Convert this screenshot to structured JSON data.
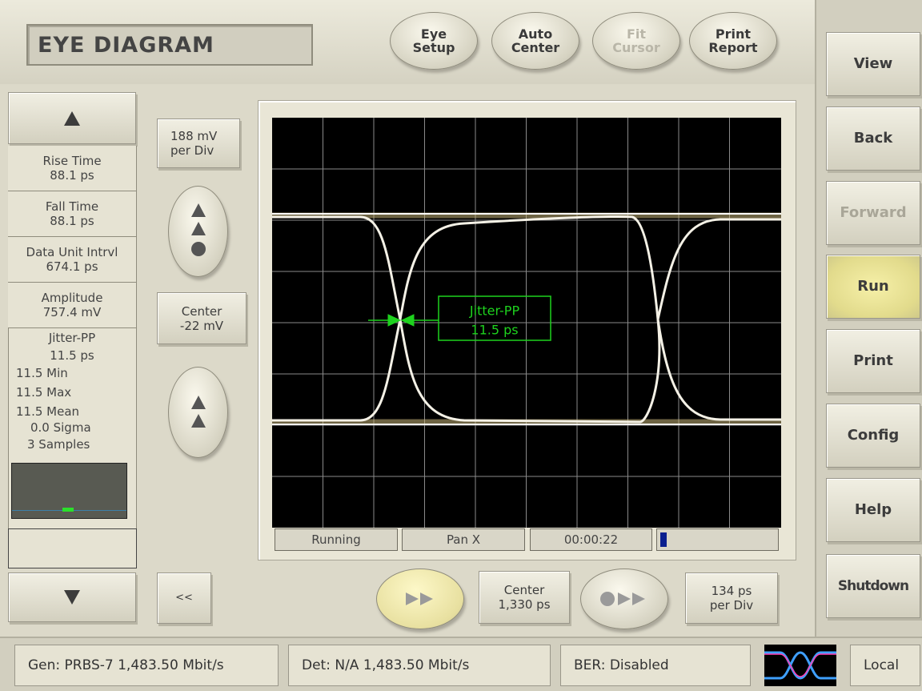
{
  "header": {
    "title": "EYE DIAGRAM",
    "buttons": [
      [
        "Eye",
        "Setup"
      ],
      [
        "Auto",
        "Center"
      ],
      [
        "Fit",
        "Cursor"
      ],
      [
        "Print",
        "Report"
      ]
    ]
  },
  "nav": [
    "View",
    "Back",
    "Forward",
    "Run",
    "Print",
    "Config",
    "Help",
    "Shutdown"
  ],
  "measurements": [
    [
      "Rise Time",
      "88.1 ps"
    ],
    [
      "Fall Time",
      "88.1 ps"
    ],
    [
      "Data Unit Intrvl",
      "674.1 ps"
    ],
    [
      "Amplitude",
      "757.4 mV"
    ]
  ],
  "jitter_panel": {
    "lines": [
      "Jitter-PP",
      "11.5 ps"
    ],
    "stats": [
      "11.5 Min",
      "11.5 Max",
      "11.5 Mean",
      "0.0 Sigma",
      "3 Samples"
    ]
  },
  "scale": {
    "vertical": [
      "188 mV",
      "per Div"
    ],
    "center": [
      "Center",
      "-22 mV"
    ],
    "back": "<<",
    "h_center": [
      "Center",
      "1,330 ps"
    ],
    "h_scale": [
      "134 ps",
      "per Div"
    ]
  },
  "plot": {
    "annotation": [
      "Jitter-PP",
      "11.5 ps"
    ]
  },
  "plot_status": [
    "Running",
    "Pan X",
    "00:00:22"
  ],
  "status_bar": [
    "Gen: PRBS-7 1,483.50 Mbit/s",
    "Det: N/A 1,483.50 Mbit/s",
    "BER: Disabled",
    "Local"
  ]
}
